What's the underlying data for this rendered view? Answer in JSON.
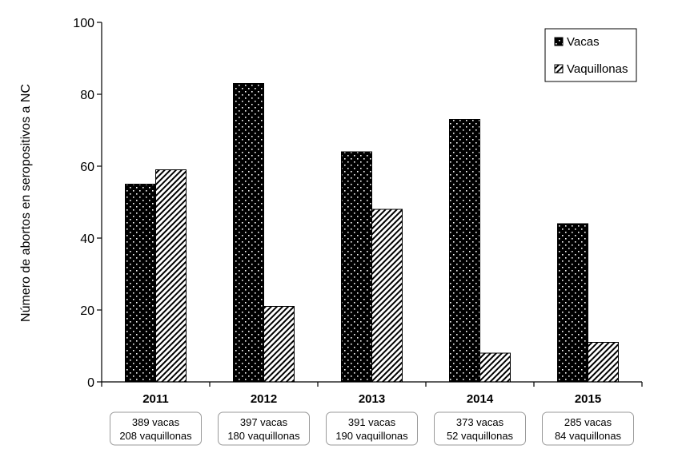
{
  "chart_data": {
    "type": "bar",
    "categories": [
      "2011",
      "2012",
      "2013",
      "2014",
      "2015"
    ],
    "series": [
      {
        "name": "Vacas",
        "values": [
          55,
          83,
          64,
          73,
          44
        ]
      },
      {
        "name": "Vaquillonas",
        "values": [
          59,
          21,
          48,
          8,
          11
        ]
      }
    ],
    "category_notes": [
      [
        "389 vacas",
        "208 vaquillonas"
      ],
      [
        "397 vacas",
        "180 vaquillonas"
      ],
      [
        "391 vacas",
        "190 vaquillonas"
      ],
      [
        "373 vacas",
        "52 vaquillonas"
      ],
      [
        "285 vacas",
        "84 vaquillonas"
      ]
    ],
    "ylabel": "Número de abortos en seropositivos a NC",
    "ylim": [
      0,
      100
    ],
    "yticks": [
      0,
      20,
      40,
      60,
      80,
      100
    ],
    "grid": false,
    "legend_position": "top-right",
    "colors": {
      "vacas_fill": "#000000",
      "vacas_dots": "#ffffff",
      "vaquillonas_fill": "#ffffff",
      "vaquillonas_hatch": "#000000"
    }
  }
}
